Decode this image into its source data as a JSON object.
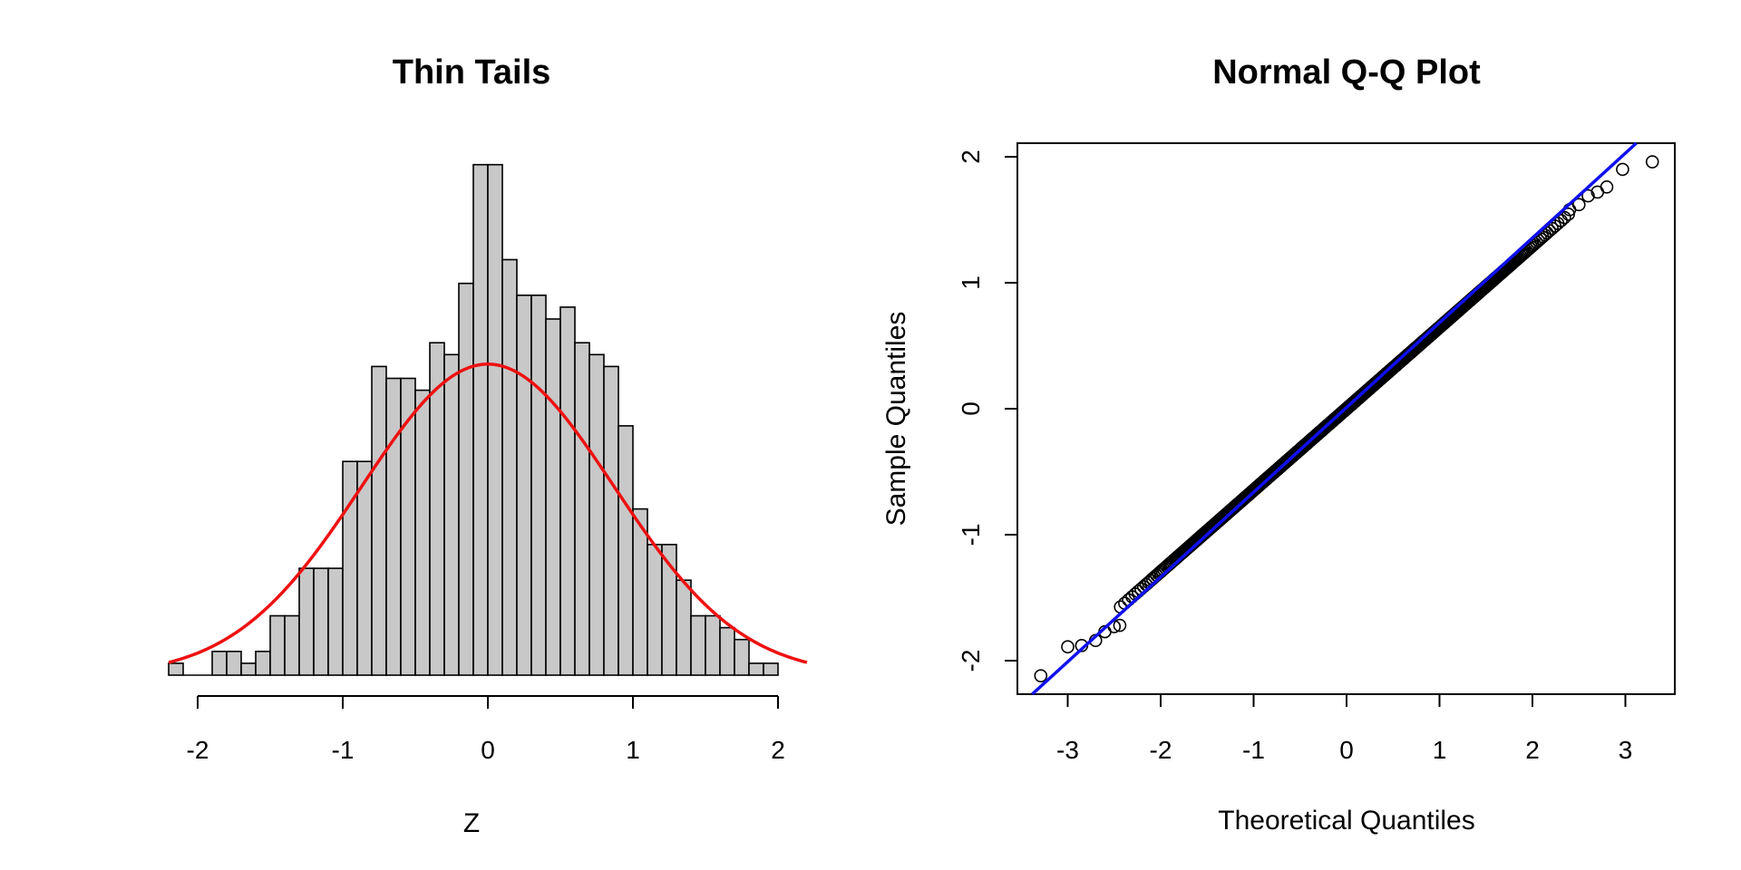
{
  "chart_data": [
    {
      "type": "bar",
      "subtype": "histogram",
      "title": "Thin Tails",
      "xlabel": "Z",
      "ylabel": "",
      "xlim": [
        -2.2,
        2.2
      ],
      "xticks": [
        "-2",
        "-1",
        "0",
        "1",
        "2"
      ],
      "xtick_values": [
        -2,
        -1,
        0,
        1,
        2
      ],
      "y_axis_drawn": false,
      "bin_width": 0.1,
      "bin_start": -2.2,
      "counts": [
        1,
        0,
        0,
        2,
        2,
        1,
        2,
        5,
        5,
        9,
        9,
        9,
        18,
        18,
        26,
        25,
        25,
        24,
        28,
        27,
        33,
        43,
        43,
        35,
        32,
        32,
        30,
        31,
        28,
        27,
        26,
        21,
        14,
        11,
        11,
        8,
        5,
        5,
        4,
        3,
        1,
        1
      ],
      "fill_color": "#c8c8c8",
      "edge_color": "#000000",
      "overlay": {
        "type": "line",
        "function": "normal density",
        "mean": 0,
        "sd": 0.87,
        "peak_count": 26.2,
        "color": "#ee1111"
      }
    },
    {
      "type": "scatter",
      "title": "Normal Q-Q Plot",
      "xlabel": "Theoretical Quantiles",
      "ylabel": "Sample Quantiles",
      "xlim": [
        -3.3,
        3.5
      ],
      "ylim": [
        -2.3,
        2.12
      ],
      "xticks": [
        "-3",
        "-2",
        "-1",
        "0",
        "1",
        "2",
        "3"
      ],
      "xtick_values": [
        -3,
        -2,
        -1,
        0,
        1,
        2,
        3
      ],
      "yticks": [
        "-2",
        "-1",
        "0",
        "1",
        "2"
      ],
      "ytick_values": [
        -2,
        -1,
        0,
        1,
        2
      ],
      "n_points": 1000,
      "quantile_slope": 0.647,
      "extreme_points": [
        [
          -3.29,
          -2.12
        ],
        [
          -3.0,
          -1.89
        ],
        [
          -2.85,
          -1.88
        ],
        [
          -2.7,
          -1.84
        ],
        [
          -2.6,
          -1.77
        ],
        [
          -2.5,
          -1.73
        ],
        [
          -2.44,
          -1.72
        ],
        [
          2.4,
          1.58
        ],
        [
          2.5,
          1.62
        ],
        [
          2.6,
          1.69
        ],
        [
          2.7,
          1.72
        ],
        [
          2.8,
          1.76
        ],
        [
          2.97,
          1.9
        ],
        [
          3.29,
          1.96
        ]
      ],
      "reference_line": {
        "intercept": 0.0,
        "slope": 0.68,
        "color": "#1010ee"
      },
      "point_color": "#000000"
    }
  ]
}
